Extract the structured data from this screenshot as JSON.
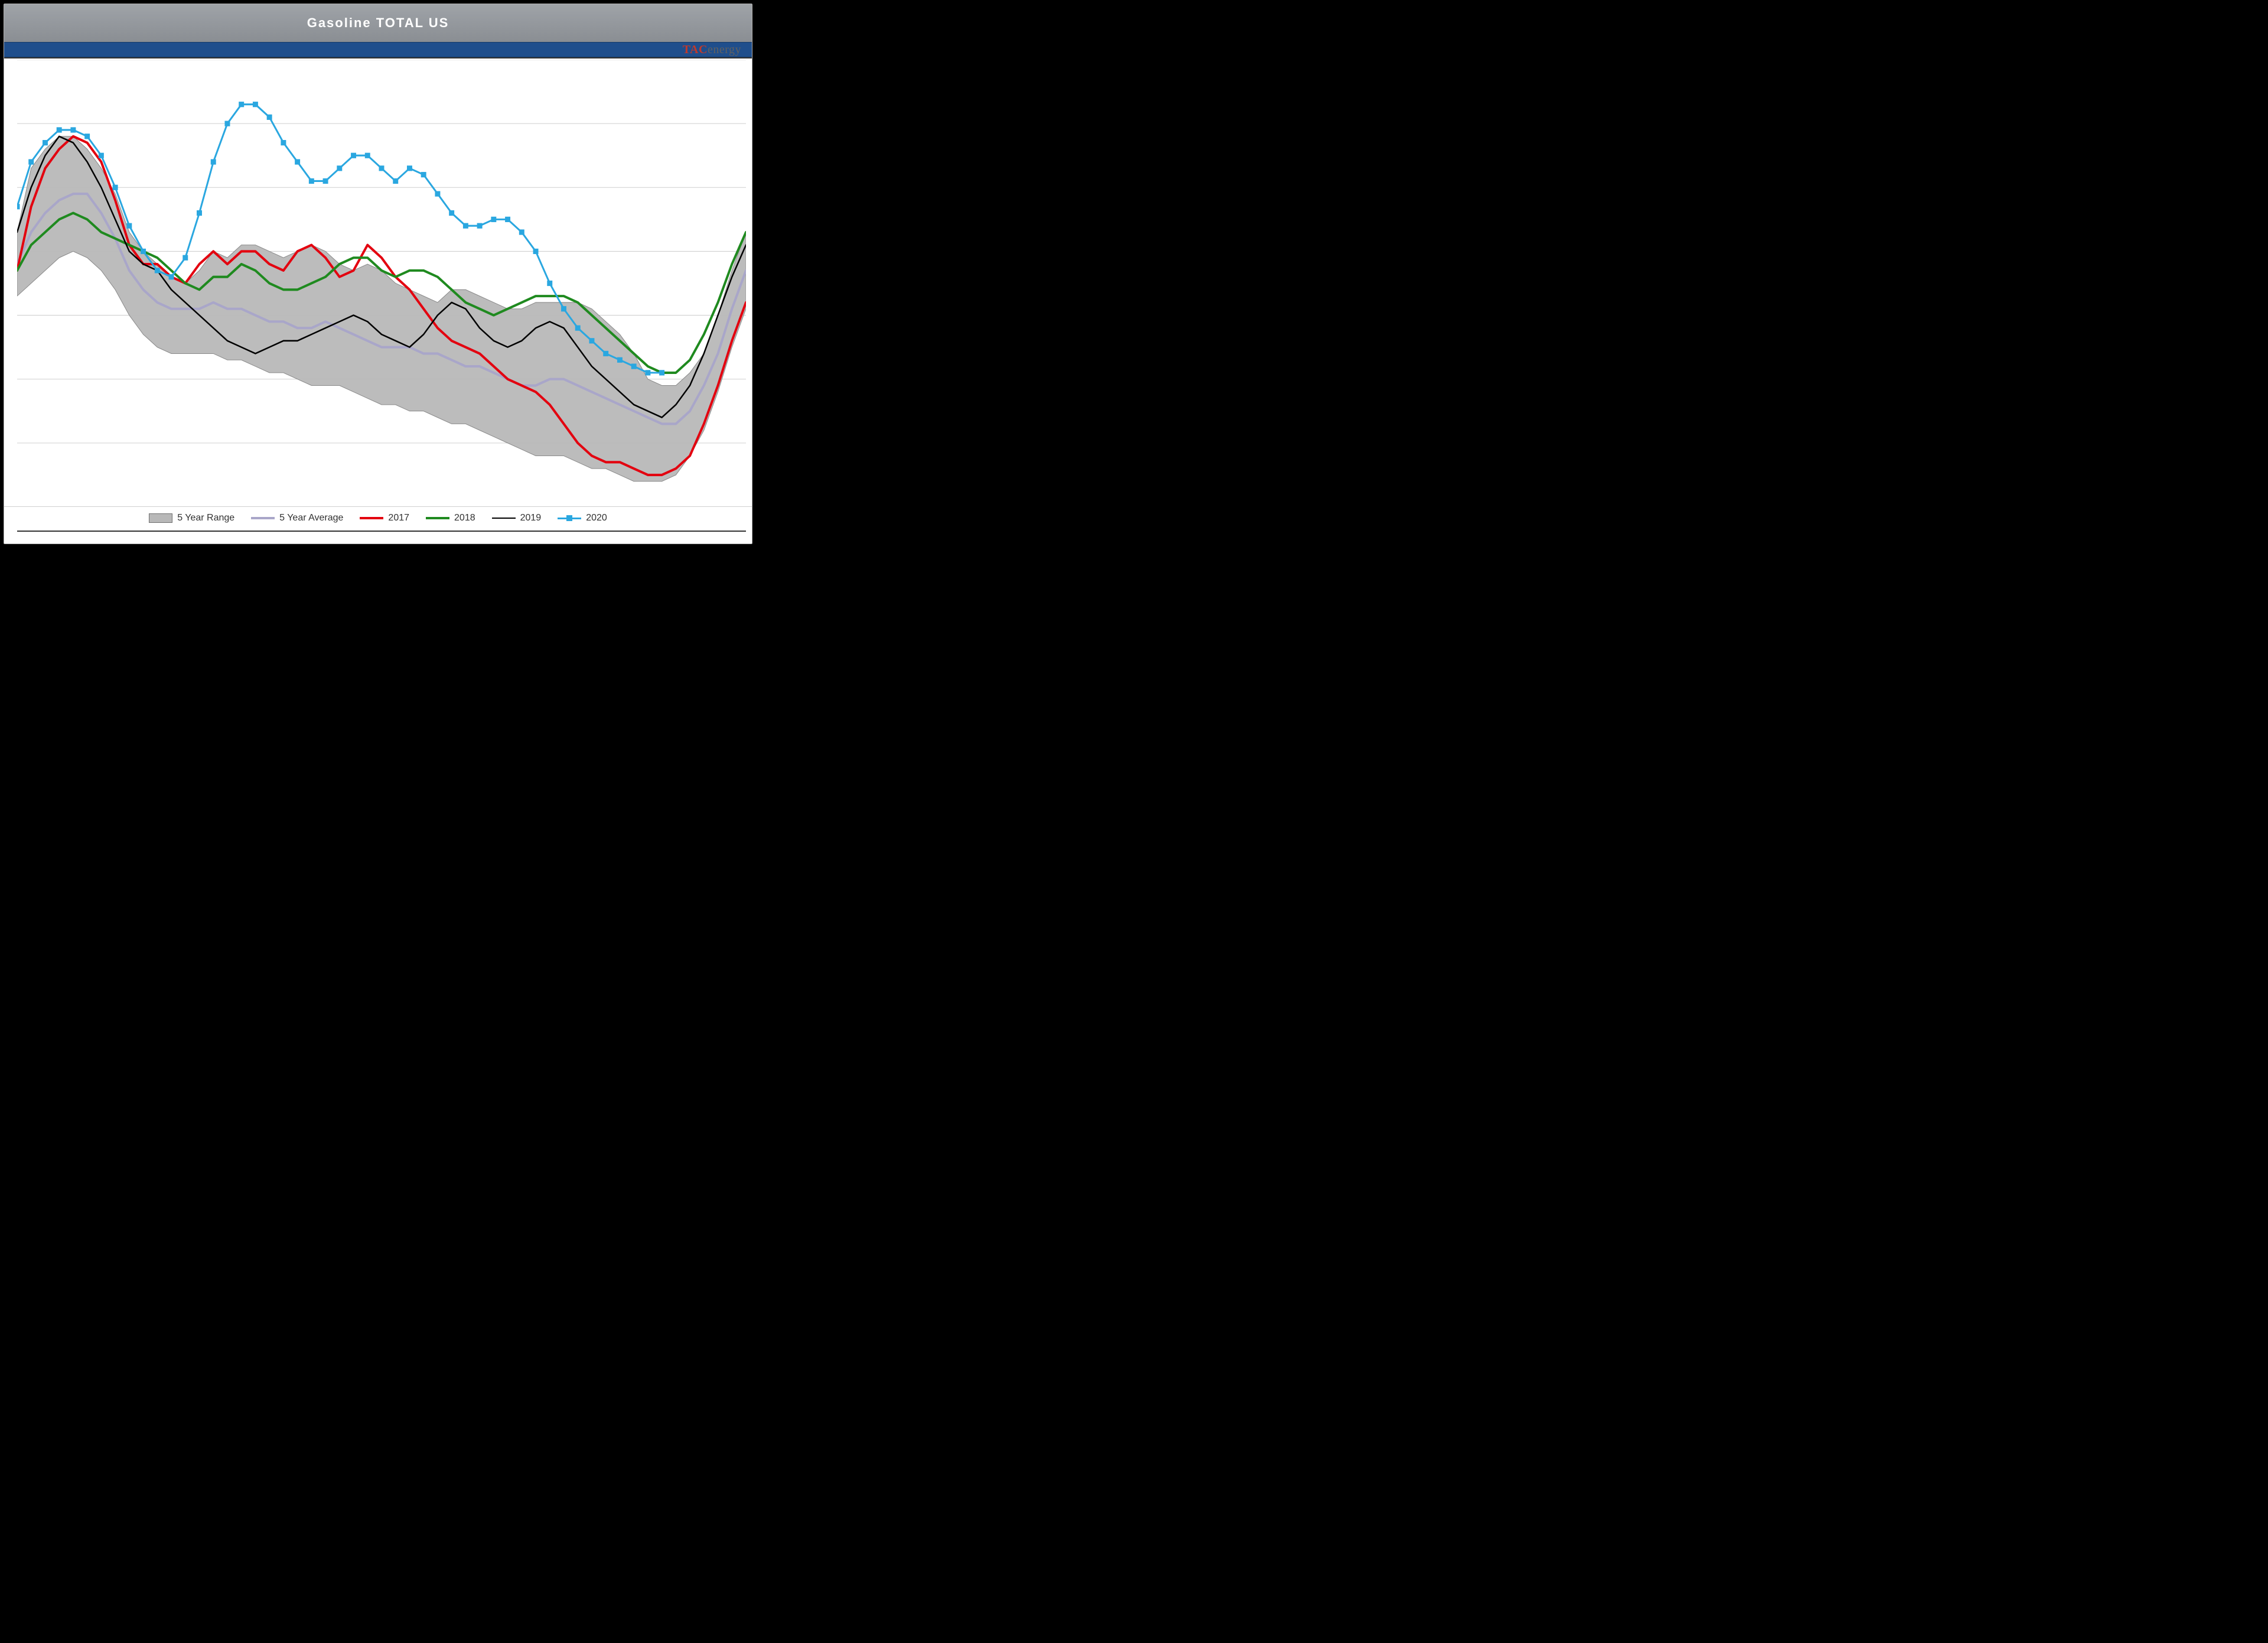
{
  "title": "Gasoline TOTAL US",
  "logo": {
    "left": "TAC",
    "right": "energy",
    "left_color": "#c0392b",
    "right_color": "#606060"
  },
  "background_color": "#000000",
  "frame_color": "#ffffff",
  "title_bar_gradient": [
    "#9fa3a8",
    "#8a8e93"
  ],
  "title_text_color": "#ffffff",
  "blue_band_color": "#1f4e8c",
  "axis_color": "#333333",
  "gridline_color": "#cfcfcf",
  "chart": {
    "type": "line+area",
    "x_count": 53,
    "ylim": [
      200,
      270
    ],
    "gridlines_y": [
      210,
      220,
      230,
      240,
      250,
      260,
      270
    ],
    "range_fill": "#b8b8b8",
    "range_border": "#8a8a8a",
    "series": {
      "range_high": {
        "label": "5 Year Range",
        "values": [
          243,
          253,
          256,
          258,
          258,
          256,
          253,
          249,
          243,
          240,
          238,
          236,
          235,
          237,
          240,
          239,
          241,
          241,
          240,
          239,
          240,
          241,
          240,
          238,
          237,
          238,
          237,
          235,
          234,
          233,
          232,
          234,
          234,
          233,
          232,
          231,
          231,
          232,
          232,
          232,
          232,
          231,
          229,
          227,
          224,
          220,
          219,
          219,
          221,
          224,
          230,
          237,
          243
        ]
      },
      "range_low": {
        "label": "5 Year Range",
        "values": [
          233,
          235,
          237,
          239,
          240,
          239,
          237,
          234,
          230,
          227,
          225,
          224,
          224,
          224,
          224,
          223,
          223,
          222,
          221,
          221,
          220,
          219,
          219,
          219,
          218,
          217,
          216,
          216,
          215,
          215,
          214,
          213,
          213,
          212,
          211,
          210,
          209,
          208,
          208,
          208,
          207,
          206,
          206,
          205,
          204,
          204,
          204,
          205,
          208,
          212,
          218,
          225,
          231
        ]
      },
      "avg": {
        "label": "5 Year Average",
        "color": "#a9a6c9",
        "width": 4,
        "values": [
          238,
          243,
          246,
          248,
          249,
          249,
          246,
          242,
          237,
          234,
          232,
          231,
          231,
          231,
          232,
          231,
          231,
          230,
          229,
          229,
          228,
          228,
          229,
          228,
          227,
          226,
          225,
          225,
          225,
          224,
          224,
          223,
          222,
          222,
          221,
          220,
          219,
          219,
          220,
          220,
          219,
          218,
          217,
          216,
          215,
          214,
          213,
          213,
          215,
          219,
          224,
          231,
          237
        ]
      },
      "y2017": {
        "label": "2017",
        "color": "#e3000f",
        "width": 4,
        "values": [
          237,
          247,
          253,
          256,
          258,
          257,
          254,
          248,
          241,
          238,
          238,
          236,
          235,
          238,
          240,
          238,
          240,
          240,
          238,
          237,
          240,
          241,
          239,
          236,
          237,
          241,
          239,
          236,
          234,
          231,
          228,
          226,
          225,
          224,
          222,
          220,
          219,
          218,
          216,
          213,
          210,
          208,
          207,
          207,
          206,
          205,
          205,
          206,
          208,
          213,
          219,
          226,
          232
        ]
      },
      "y2018": {
        "label": "2018",
        "color": "#1f8a1f",
        "width": 4,
        "values": [
          237,
          241,
          243,
          245,
          246,
          245,
          243,
          242,
          241,
          240,
          239,
          237,
          235,
          234,
          236,
          236,
          238,
          237,
          235,
          234,
          234,
          235,
          236,
          238,
          239,
          239,
          237,
          236,
          237,
          237,
          236,
          234,
          232,
          231,
          230,
          231,
          232,
          233,
          233,
          233,
          232,
          230,
          228,
          226,
          224,
          222,
          221,
          221,
          223,
          227,
          232,
          238,
          243
        ]
      },
      "y2019": {
        "label": "2019",
        "color": "#000000",
        "width": 2.5,
        "values": [
          243,
          250,
          255,
          258,
          257,
          254,
          250,
          245,
          240,
          238,
          237,
          234,
          232,
          230,
          228,
          226,
          225,
          224,
          225,
          226,
          226,
          227,
          228,
          229,
          230,
          229,
          227,
          226,
          225,
          227,
          230,
          232,
          231,
          228,
          226,
          225,
          226,
          228,
          229,
          228,
          225,
          222,
          220,
          218,
          216,
          215,
          214,
          216,
          219,
          224,
          230,
          236,
          241
        ]
      },
      "y2020": {
        "label": "2020",
        "color": "#2aa7e0",
        "width": 3,
        "marker": "square",
        "marker_size": 9,
        "values": [
          247,
          254,
          257,
          259,
          259,
          258,
          255,
          250,
          244,
          240,
          237,
          236,
          239,
          246,
          254,
          260,
          263,
          263,
          261,
          257,
          254,
          251,
          251,
          253,
          255,
          255,
          253,
          251,
          253,
          252,
          249,
          246,
          244,
          244,
          245,
          245,
          243,
          240,
          235,
          231,
          228,
          226,
          224,
          223,
          222,
          221,
          221
        ]
      }
    },
    "legend_order": [
      "range",
      "avg",
      "y2017",
      "y2018",
      "y2019",
      "y2020"
    ],
    "legend_labels": {
      "range": "5 Year Range",
      "avg": "5 Year Average",
      "y2017": "2017",
      "y2018": "2018",
      "y2019": "2019",
      "y2020": "2020"
    }
  }
}
